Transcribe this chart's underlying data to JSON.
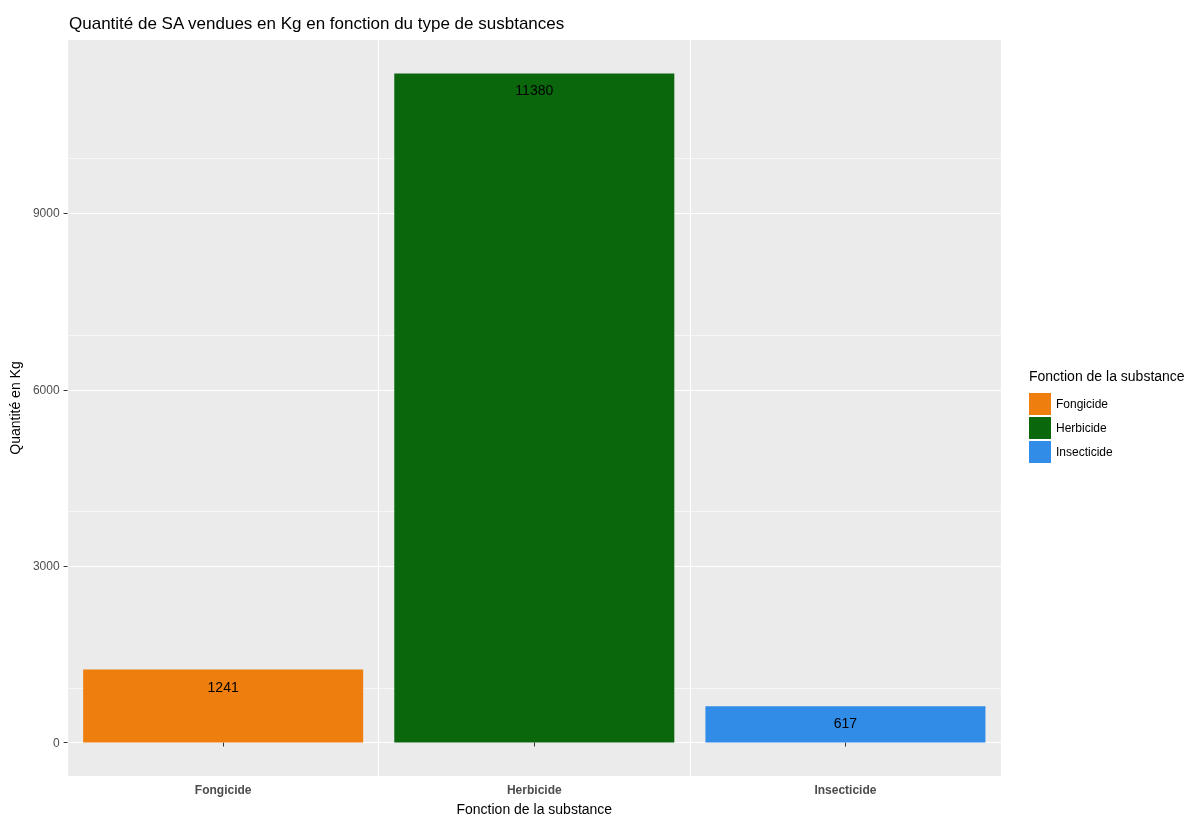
{
  "chart_data": {
    "type": "bar",
    "title": "Quantité de SA vendues en Kg en fonction du type de susbtances",
    "xlabel": "Fonction de la substance",
    "ylabel": "Quantité en Kg",
    "legend_title": "Fonction de la substance",
    "categories": [
      "Fongicide",
      "Herbicide",
      "Insecticide"
    ],
    "series": [
      {
        "name": "Fongicide",
        "color": "#ee7f0e",
        "values": [
          1241,
          null,
          null
        ]
      },
      {
        "name": "Herbicide",
        "color": "#0a670c",
        "values": [
          null,
          11380,
          null
        ]
      },
      {
        "name": "Insecticide",
        "color": "#318ce8",
        "values": [
          null,
          null,
          617
        ]
      }
    ],
    "stacked": true,
    "ylim": [
      -569,
      11949
    ],
    "yticks": [
      0,
      3000,
      6000,
      9000
    ],
    "grid": true,
    "legend": "right",
    "data_labels": true
  }
}
